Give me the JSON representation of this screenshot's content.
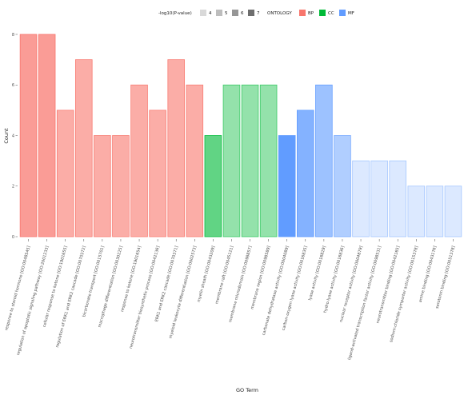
{
  "chart_data": {
    "type": "bar",
    "xlabel": "GO Term",
    "ylabel": "Count",
    "ylim": [
      0,
      8
    ],
    "yticks": [
      "0",
      "2",
      "4",
      "6",
      "8"
    ],
    "grid": false,
    "legend_position": "top",
    "legend": {
      "size_title": "-log10(P-value)",
      "size_items": [
        "4",
        "5",
        "6",
        "7"
      ],
      "size_colors": [
        "#d9d9d9",
        "#bdbdbd",
        "#969696",
        "#6e6e6e"
      ],
      "ontology_title": "ONTOLOGY",
      "ontology_items": [
        {
          "label": "BP",
          "color": "#f8766d"
        },
        {
          "label": "CC",
          "color": "#00ba38"
        },
        {
          "label": "MF",
          "color": "#619cff"
        }
      ]
    },
    "series_colors": {
      "BP": "#f8766d",
      "CC": "#00ba38",
      "MF": "#619cff"
    },
    "bars": [
      {
        "label": "response to steroid hormone [GO:0048545]",
        "value": 8,
        "ontology": "BP",
        "alpha": 0.72
      },
      {
        "label": "regulation of apoptotic signaling pathway [GO:2001233]",
        "value": 8,
        "ontology": "BP",
        "alpha": 0.72
      },
      {
        "label": "cellular response to ketone [GO:1901655]",
        "value": 5,
        "ontology": "BP",
        "alpha": 0.6
      },
      {
        "label": "regulation of ERK1 and ERK2 cascade [GO:0070372]",
        "value": 7,
        "ontology": "BP",
        "alpha": 0.6
      },
      {
        "label": "bicarbonate transport [GO:0015701]",
        "value": 4,
        "ontology": "BP",
        "alpha": 0.6
      },
      {
        "label": "macrophage differentiation [GO:0030225]",
        "value": 4,
        "ontology": "BP",
        "alpha": 0.6
      },
      {
        "label": "response to ketone [GO:1901654]",
        "value": 6,
        "ontology": "BP",
        "alpha": 0.6
      },
      {
        "label": "neurotransmitter biosynthetic process [GO:0042136]",
        "value": 5,
        "ontology": "BP",
        "alpha": 0.6
      },
      {
        "label": "ERK1 and ERK2 cascade [GO:0070371]",
        "value": 7,
        "ontology": "BP",
        "alpha": 0.6
      },
      {
        "label": "myeloid leukocyte differentiation [GO:0002573]",
        "value": 6,
        "ontology": "BP",
        "alpha": 0.6
      },
      {
        "label": "myelin sheath [GO:0043209]",
        "value": 4,
        "ontology": "CC",
        "alpha": 0.62
      },
      {
        "label": "membrane raft [GO:0045121]",
        "value": 6,
        "ontology": "CC",
        "alpha": 0.42
      },
      {
        "label": "membrane microdomain [GO:0098857]",
        "value": 6,
        "ontology": "CC",
        "alpha": 0.42
      },
      {
        "label": "membrane region [GO:0098589]",
        "value": 6,
        "ontology": "CC",
        "alpha": 0.42
      },
      {
        "label": "carbonate dehydratase activity [GO:0004089]",
        "value": 4,
        "ontology": "MF",
        "alpha": 1.0
      },
      {
        "label": "carbon-oxygen lyase activity [GO:0016835]",
        "value": 5,
        "ontology": "MF",
        "alpha": 0.78
      },
      {
        "label": "lyase activity [GO:0016829]",
        "value": 6,
        "ontology": "MF",
        "alpha": 0.62
      },
      {
        "label": "hydro-lyase activity [GO:0016836]",
        "value": 4,
        "ontology": "MF",
        "alpha": 0.5
      },
      {
        "label": "nuclear receptor activity [GO:0004879]",
        "value": 3,
        "ontology": "MF",
        "alpha": 0.22
      },
      {
        "label": "ligand-activated transcription factor activity [GO:0098531]",
        "value": 3,
        "ontology": "MF",
        "alpha": 0.22
      },
      {
        "label": "neurotransmitter binding [GO:0042165]",
        "value": 3,
        "ontology": "MF",
        "alpha": 0.22
      },
      {
        "label": "sodium:chloride symporter activity [GO:0015378]",
        "value": 2,
        "ontology": "MF",
        "alpha": 0.22
      },
      {
        "label": "amine binding [GO:0043176]",
        "value": 2,
        "ontology": "MF",
        "alpha": 0.22
      },
      {
        "label": "serotonin binding [GO:0051378]",
        "value": 2,
        "ontology": "MF",
        "alpha": 0.22
      }
    ]
  }
}
